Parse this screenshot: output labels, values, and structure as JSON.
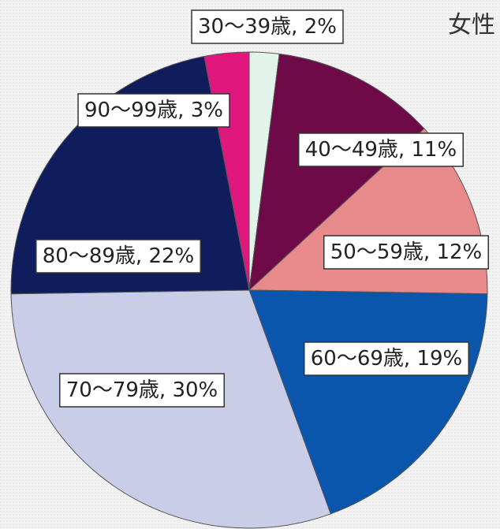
{
  "chart_data": {
    "type": "pie",
    "title": "女性",
    "values": [
      2,
      11,
      12,
      19,
      30,
      22,
      3
    ],
    "value_labels": [
      "30～39歳, 2%",
      "40～49歳, 11%",
      "50～59歳, 12%",
      "60～69歳, 19%",
      "70～79歳, 30%",
      "80～89歳, 22%",
      "90～99歳, 3%"
    ],
    "colors": [
      "#e2f4ea",
      "#6e0a47",
      "#e8898b",
      "#0b56ad",
      "#c9cde8",
      "#101d5c",
      "#e0177c"
    ]
  }
}
